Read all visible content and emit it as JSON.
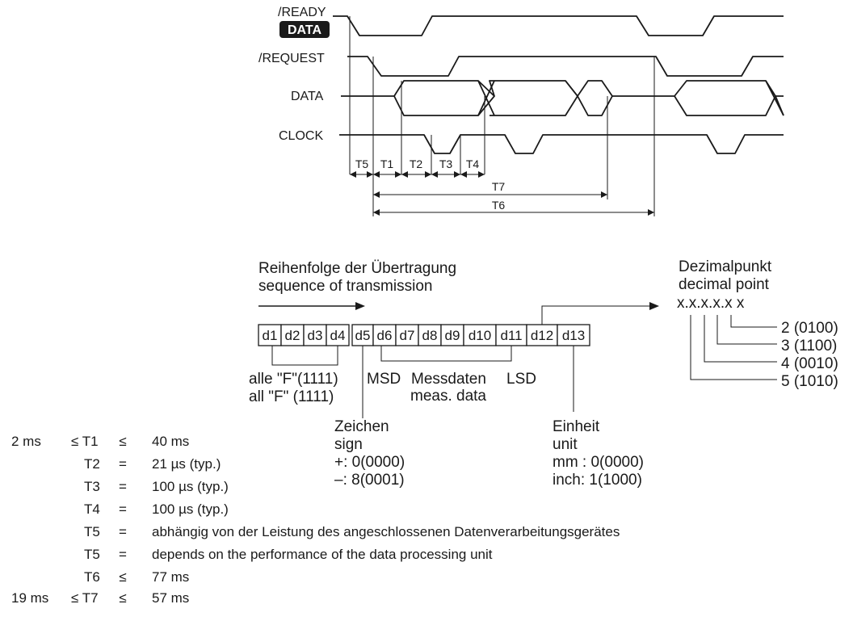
{
  "signals": {
    "ready": "/READY",
    "data_badge": "DATA",
    "request": "/REQUEST",
    "data": "DATA",
    "clock": "CLOCK"
  },
  "timing_labels": [
    "T5",
    "T1",
    "T2",
    "T3",
    "T4",
    "T7",
    "T6"
  ],
  "sequence": {
    "title_de": "Reihenfolge der Übertragung",
    "title_en": "sequence of transmission",
    "digits": [
      "d1",
      "d2",
      "d3",
      "d4",
      "d5",
      "d6",
      "d7",
      "d8",
      "d9",
      "d10",
      "d11",
      "d12",
      "d13"
    ],
    "all_f_de": "alle \"F\"(1111)",
    "all_f_en": "all \"F\" (1111)",
    "msd": "MSD",
    "messdaten": "Messdaten",
    "lsd": "LSD",
    "meas_data": "meas. data",
    "sign_de": "Zeichen",
    "sign_en": "sign",
    "sign_plus": "+: 0(0000)",
    "sign_minus": "–: 8(0001)",
    "unit_de": "Einheit",
    "unit_en": "unit",
    "unit_mm": "mm : 0(0000)",
    "unit_inch": "inch: 1(1000)"
  },
  "decimal": {
    "title_de": "Dezimalpunkt",
    "title_en": "decimal point",
    "pattern": "x.x.x.x.x x",
    "codes": [
      "2 (0100)",
      "3 (1100)",
      "4 (0010)",
      "5 (1010)"
    ]
  },
  "timing_table": [
    {
      "pre": "2 ms",
      "lhs": "≤ T1",
      "op": "≤",
      "value": "40 ms"
    },
    {
      "pre": "",
      "lhs": "T2",
      "op": "=",
      "value": "21 µs (typ.)"
    },
    {
      "pre": "",
      "lhs": "T3",
      "op": "=",
      "value": "100 µs (typ.)"
    },
    {
      "pre": "",
      "lhs": "T4",
      "op": "=",
      "value": "100 µs (typ.)"
    },
    {
      "pre": "",
      "lhs": "T5",
      "op": "=",
      "value": "abhängig von der Leistung des angeschlossenen Datenverarbeitungsgerätes"
    },
    {
      "pre": "",
      "lhs": "T5",
      "op": "=",
      "value": "depends on the performance of the data processing unit"
    },
    {
      "pre": "",
      "lhs": "T6",
      "op": "≤",
      "value": "77 ms"
    },
    {
      "pre": "19 ms",
      "lhs": "≤ T7",
      "op": "≤",
      "value": "57 ms"
    }
  ]
}
